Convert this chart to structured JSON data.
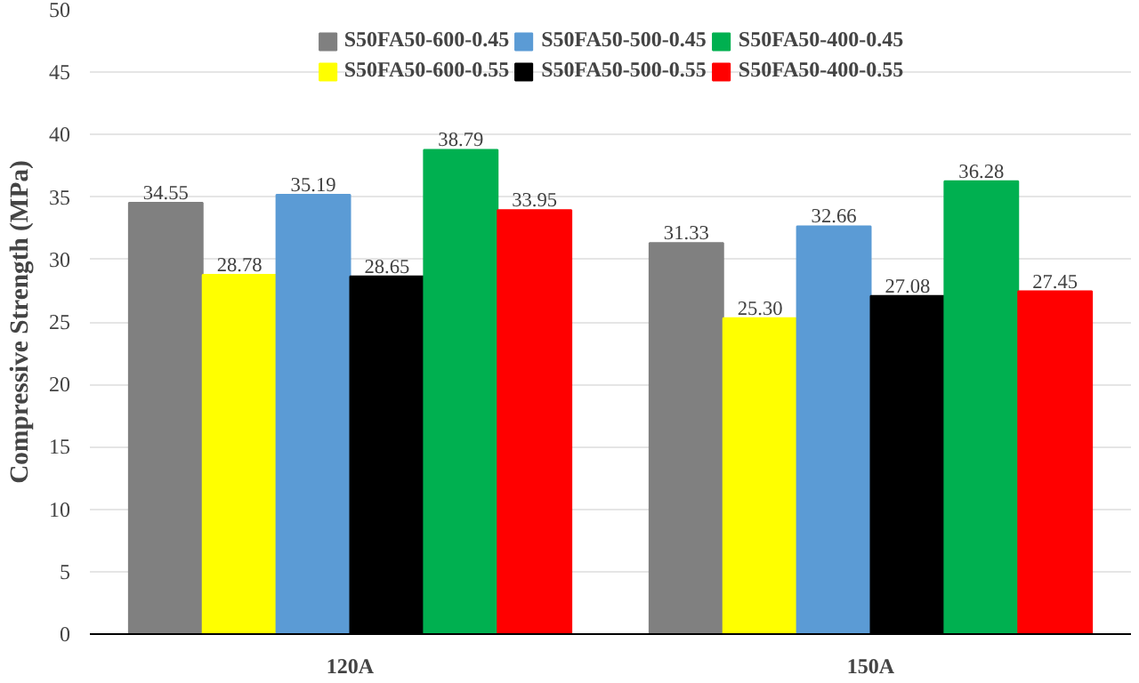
{
  "chart_data": {
    "type": "bar",
    "ylabel": "Compressive Strength (MPa)",
    "categories": [
      "120A",
      "150A"
    ],
    "ylim": [
      0,
      50
    ],
    "yticks": [
      0,
      5,
      10,
      15,
      20,
      25,
      30,
      35,
      40,
      45,
      50
    ],
    "grid": "y",
    "legend": "top",
    "series": [
      {
        "name": "S50FA50-600-0.45",
        "color": "#808080",
        "values": [
          34.55,
          31.33
        ],
        "value_labels": [
          "34.55",
          "31.33"
        ]
      },
      {
        "name": "S50FA50-600-0.55",
        "color": "#ffff00",
        "values": [
          28.78,
          25.3
        ],
        "value_labels": [
          "28.78",
          "25.30"
        ]
      },
      {
        "name": "S50FA50-500-0.45",
        "color": "#5b9bd5",
        "values": [
          35.19,
          32.66
        ],
        "value_labels": [
          "35.19",
          "32.66"
        ]
      },
      {
        "name": "S50FA50-500-0.55",
        "color": "#000000",
        "values": [
          28.65,
          27.08
        ],
        "value_labels": [
          "28.65",
          "27.08"
        ]
      },
      {
        "name": "S50FA50-400-0.45",
        "color": "#00b050",
        "values": [
          38.79,
          36.28
        ],
        "value_labels": [
          "38.79",
          "36.28"
        ]
      },
      {
        "name": "S50FA50-400-0.55",
        "color": "#ff0000",
        "values": [
          33.95,
          27.45
        ],
        "value_labels": [
          "33.95",
          "27.45"
        ]
      }
    ]
  }
}
